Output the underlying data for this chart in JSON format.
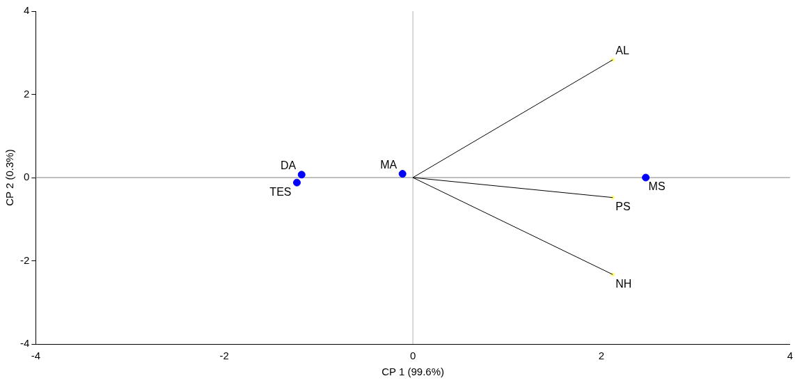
{
  "chart_data": {
    "type": "scatter",
    "xlabel": "CP 1 (99.6%)",
    "ylabel": "CP 2 (0.3%)",
    "xlim": [
      -4,
      4
    ],
    "ylim": [
      -4,
      4
    ],
    "xticks": [
      -4,
      -2,
      0,
      2,
      4
    ],
    "yticks": [
      -4,
      -2,
      0,
      2,
      4
    ],
    "grid": false,
    "legend": false,
    "series": [
      {
        "type": "line",
        "color": "#000000",
        "marker": "none",
        "x": [
          0,
          2.12
        ],
        "values": [
          0,
          2.83
        ]
      },
      {
        "type": "line",
        "color": "#000000",
        "marker": "none",
        "x": [
          0,
          2.12
        ],
        "values": [
          0,
          -0.48
        ]
      },
      {
        "type": "line",
        "color": "#000000",
        "marker": "none",
        "x": [
          0,
          2.12
        ],
        "values": [
          0,
          -2.33
        ]
      },
      {
        "type": "scatter",
        "color": "#ffff80",
        "marker": "circle",
        "x": [
          2.12,
          2.12,
          2.12
        ],
        "values": [
          2.83,
          -0.48,
          -2.33
        ]
      },
      {
        "type": "scatter",
        "color": "#0000ff",
        "marker": "circle",
        "x": [
          -1.18,
          -1.23,
          -0.11,
          2.47
        ],
        "values": [
          0.07,
          -0.12,
          0.09,
          0.0
        ]
      }
    ],
    "ref_lines": [
      {
        "axis": "x",
        "value": 0,
        "color": "#b4b4b4"
      },
      {
        "axis": "y",
        "value": 0,
        "color": "#808080"
      }
    ],
    "annotations": [
      {
        "text": "AL",
        "x": 2.12,
        "y": 2.83
      },
      {
        "text": "PS",
        "x": 2.12,
        "y": -0.48
      },
      {
        "text": "NH",
        "x": 2.12,
        "y": -2.33
      },
      {
        "text": "DA",
        "x": -1.18,
        "y": 0.07
      },
      {
        "text": "TES",
        "x": -1.23,
        "y": -0.12
      },
      {
        "text": "MA",
        "x": -0.11,
        "y": 0.09
      },
      {
        "text": "MS",
        "x": 2.47,
        "y": 0.0
      }
    ]
  }
}
